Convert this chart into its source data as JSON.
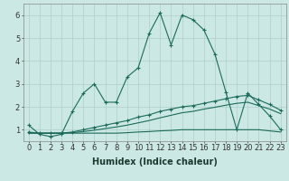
{
  "title": "",
  "xlabel": "Humidex (Indice chaleur)",
  "bg_color": "#cce8e4",
  "grid_color": "#b0cfc9",
  "line_color": "#1a6b5a",
  "xlim": [
    -0.5,
    23.5
  ],
  "ylim": [
    0.5,
    6.5
  ],
  "xticks": [
    0,
    1,
    2,
    3,
    4,
    5,
    6,
    7,
    8,
    9,
    10,
    11,
    12,
    13,
    14,
    15,
    16,
    17,
    18,
    19,
    20,
    21,
    22,
    23
  ],
  "yticks": [
    1,
    2,
    3,
    4,
    5,
    6
  ],
  "curve1_x": [
    0,
    1,
    2,
    3,
    4,
    5,
    6,
    7,
    8,
    9,
    10,
    11,
    12,
    13,
    14,
    15,
    16,
    17,
    18,
    19,
    20,
    21,
    22,
    23
  ],
  "curve1_y": [
    1.2,
    0.8,
    0.7,
    0.8,
    1.8,
    2.6,
    3.0,
    2.2,
    2.2,
    3.3,
    3.7,
    5.2,
    6.1,
    4.7,
    6.0,
    5.8,
    5.35,
    4.3,
    2.65,
    1.0,
    2.6,
    2.1,
    1.6,
    1.0
  ],
  "curve2_x": [
    0,
    1,
    2,
    3,
    4,
    5,
    6,
    7,
    8,
    9,
    10,
    11,
    12,
    13,
    14,
    15,
    16,
    17,
    18,
    19,
    20,
    21,
    22,
    23
  ],
  "curve2_y": [
    0.9,
    0.85,
    0.85,
    0.85,
    0.9,
    1.0,
    1.1,
    1.2,
    1.3,
    1.4,
    1.55,
    1.65,
    1.8,
    1.9,
    2.0,
    2.05,
    2.15,
    2.25,
    2.35,
    2.45,
    2.5,
    2.3,
    2.1,
    1.85
  ],
  "curve3_x": [
    0,
    1,
    2,
    3,
    4,
    5,
    6,
    7,
    8,
    9,
    10,
    11,
    12,
    13,
    14,
    15,
    16,
    17,
    18,
    19,
    20,
    21,
    22,
    23
  ],
  "curve3_y": [
    0.85,
    0.85,
    0.85,
    0.85,
    0.87,
    0.92,
    0.98,
    1.05,
    1.12,
    1.2,
    1.3,
    1.4,
    1.52,
    1.63,
    1.74,
    1.8,
    1.9,
    1.98,
    2.07,
    2.15,
    2.2,
    2.05,
    1.9,
    1.7
  ],
  "curve4_x": [
    0,
    1,
    2,
    3,
    4,
    5,
    6,
    7,
    8,
    9,
    10,
    11,
    12,
    13,
    14,
    15,
    16,
    17,
    18,
    19,
    20,
    21,
    22,
    23
  ],
  "curve4_y": [
    0.85,
    0.85,
    0.85,
    0.85,
    0.85,
    0.85,
    0.85,
    0.85,
    0.85,
    0.87,
    0.9,
    0.92,
    0.95,
    0.97,
    1.0,
    1.0,
    1.0,
    1.0,
    1.0,
    1.0,
    1.0,
    1.0,
    0.95,
    0.9
  ],
  "tick_fontsize": 6.0,
  "xlabel_fontsize": 7.0
}
